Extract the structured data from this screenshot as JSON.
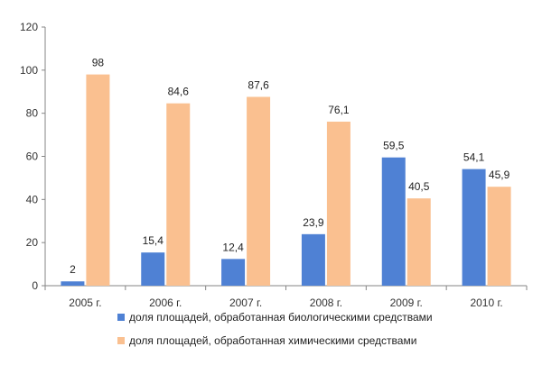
{
  "chart_data": {
    "type": "bar",
    "categories": [
      "2005 г.",
      "2006 г.",
      "2007 г.",
      "2008 г.",
      "2009 г.",
      "2010 г."
    ],
    "series": [
      {
        "name": "доля площадей, обработанная биологическими средствами",
        "values": [
          2,
          15.4,
          12.4,
          23.9,
          59.5,
          54.1
        ],
        "labels": [
          "2",
          "15,4",
          "12,4",
          "23,9",
          "59,5",
          "54,1"
        ],
        "color": "#4f81d4"
      },
      {
        "name": "доля площадей, обработанная химическими средствами",
        "values": [
          98,
          84.6,
          87.6,
          76.1,
          40.5,
          45.9
        ],
        "labels": [
          "98",
          "84,6",
          "87,6",
          "76,1",
          "40,5",
          "45,9"
        ],
        "color": "#fac090"
      }
    ],
    "ylim": [
      0,
      120
    ],
    "yticks": [
      "0",
      "20",
      "40",
      "60",
      "80",
      "100",
      "120"
    ],
    "grid": false,
    "legend_position": "bottom"
  }
}
